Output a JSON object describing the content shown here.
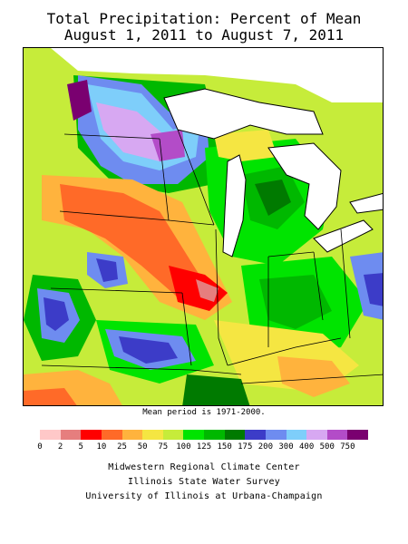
{
  "title": {
    "line1": "Total Precipitation: Percent of Mean",
    "line2": "August 1, 2011 to August 7, 2011"
  },
  "mean_period": "Mean period is 1971-2000.",
  "legend": {
    "labels": [
      "0",
      "2",
      "5",
      "10",
      "25",
      "50",
      "75",
      "100",
      "125",
      "150",
      "175",
      "200",
      "300",
      "400",
      "500",
      "750"
    ],
    "colors": [
      "#ffc8c8",
      "#e67e7e",
      "#ff0000",
      "#ff6a28",
      "#ffb33d",
      "#f5e642",
      "#c6ec3a",
      "#00e400",
      "#00b800",
      "#007a00",
      "#3c3cc8",
      "#6e8cf0",
      "#7ecefa",
      "#d7a8f2",
      "#b34cc8",
      "#7a0070"
    ]
  },
  "credits": {
    "line1": "Midwestern Regional Climate Center",
    "line2": "Illinois State Water Survey",
    "line3": "University of Illinois at Urbana-Champaign"
  }
}
